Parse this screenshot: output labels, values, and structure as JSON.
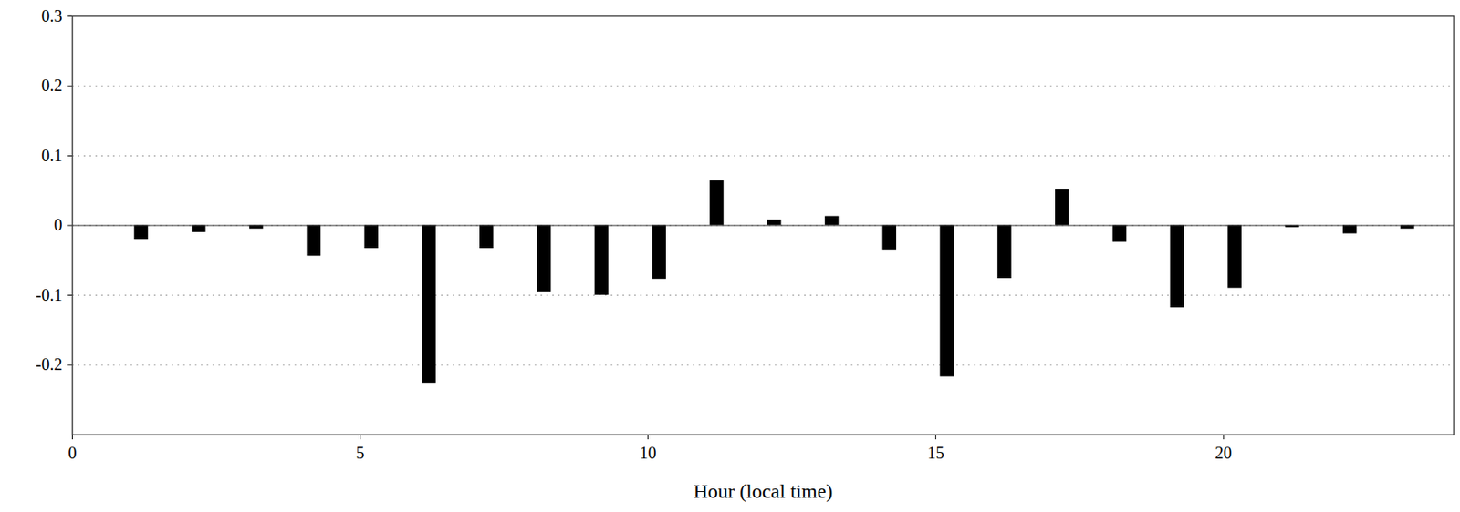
{
  "chart_data": {
    "type": "bar",
    "x_label": "Hour (local time)",
    "x": [
      1.2,
      2.2,
      3.2,
      4.2,
      5.2,
      6.2,
      7.2,
      8.2,
      9.2,
      10.2,
      11.2,
      12.2,
      13.2,
      14.2,
      15.2,
      16.2,
      17.2,
      18.2,
      19.2,
      20.2,
      21.2,
      22.2,
      23.2
    ],
    "values": [
      -0.02,
      -0.01,
      -0.005,
      -0.044,
      -0.033,
      -0.226,
      -0.033,
      -0.095,
      -0.1,
      -0.077,
      0.064,
      0.008,
      0.013,
      -0.035,
      -0.217,
      -0.076,
      0.051,
      -0.024,
      -0.118,
      -0.09,
      -0.003,
      -0.012,
      -0.005
    ],
    "color": "#000000",
    "xlim": [
      0,
      24
    ],
    "xticks": [
      0,
      5,
      10,
      15,
      20
    ],
    "ylim": [
      -0.3,
      0.3
    ],
    "yticks": [
      -0.2,
      -0.1,
      0,
      0.1,
      0.2,
      0.3
    ],
    "grid": true
  }
}
